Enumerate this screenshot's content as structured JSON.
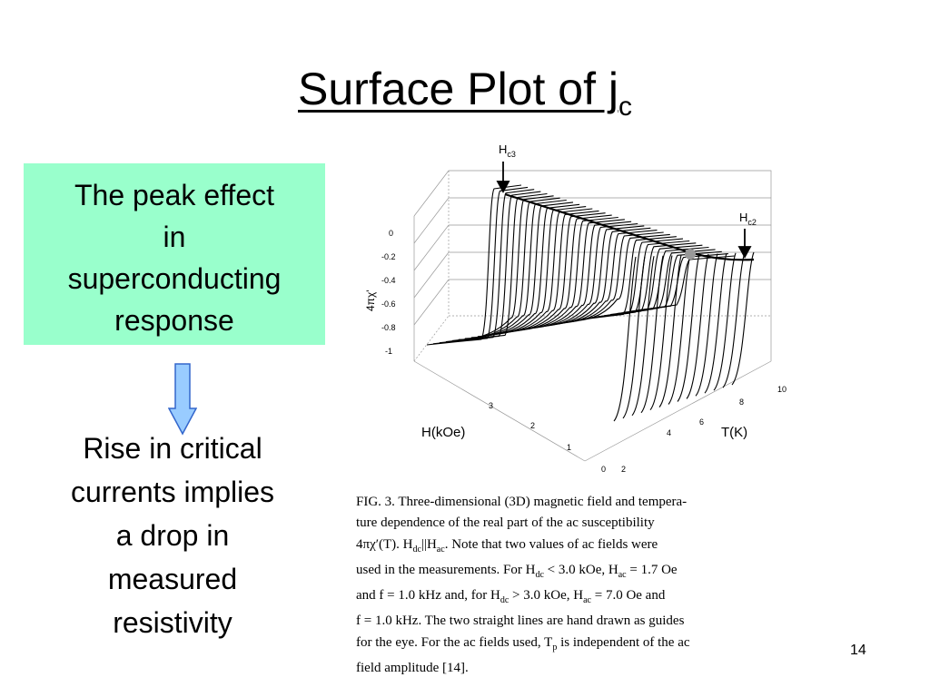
{
  "slide": {
    "title_main": "Surface Plot of j",
    "title_sub": "c",
    "callout": [
      "The peak effect",
      "in",
      "superconducting",
      "response"
    ],
    "body": [
      "Rise in critical",
      "currents implies",
      "a drop in",
      "measured",
      "resistivity"
    ],
    "page_number": "14"
  },
  "figure": {
    "z_label": "4πχ'",
    "z_ticks": [
      "0",
      "-0.2",
      "-0.4",
      "-0.6",
      "-0.8",
      "-1"
    ],
    "h_label": "H(kOe)",
    "h_ticks": [
      "0",
      "1",
      "2",
      "3"
    ],
    "t_label": "T(K)",
    "t_ticks": [
      "2",
      "4",
      "6",
      "8",
      "10"
    ],
    "hc3_label": "H",
    "hc3_sub": "c3",
    "hc2_label": "H",
    "hc2_sub": "c2"
  },
  "caption": {
    "lines": [
      "FIG. 3.   Three-dimensional (3D) magnetic field and tempera-",
      "ture dependence of the real part of the ac susceptibility",
      "4πχ′(T). H<sub>dc</sub>||H<sub>ac</sub>. Note that two values of ac fields were",
      "used in the measurements. For H<sub>dc</sub> < 3.0 kOe, H<sub>ac</sub> = 1.7 Oe",
      "and f = 1.0 kHz and, for H<sub>dc</sub> > 3.0 kOe, H<sub>ac</sub> = 7.0 Oe and",
      "f = 1.0 kHz. The two straight lines are hand drawn as guides",
      "for the eye. For the ac fields used, T<sub>p</sub> is independent of the ac",
      "field amplitude [14]."
    ]
  }
}
